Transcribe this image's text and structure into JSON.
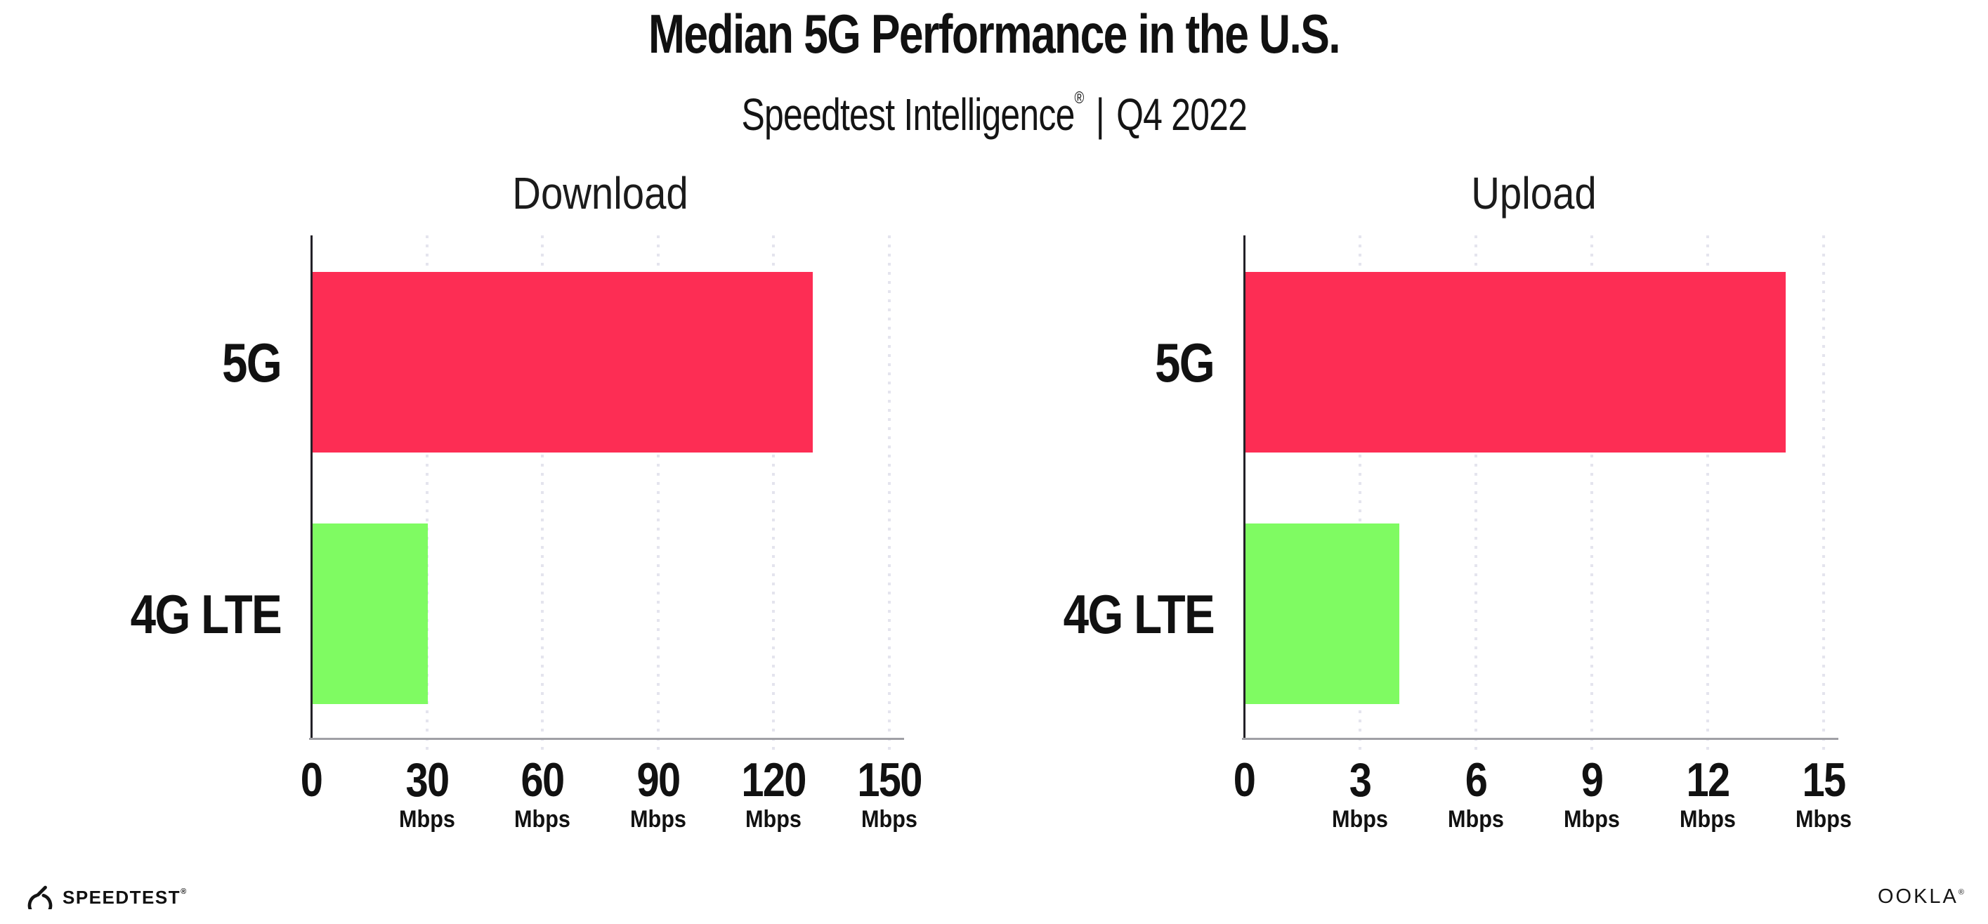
{
  "title": "Median 5G Performance in the U.S.",
  "subtitle": {
    "product": "Speedtest Intelligence",
    "trademark": "®",
    "separator": "|",
    "period": "Q4 2022"
  },
  "chart_data": [
    {
      "type": "bar",
      "orientation": "horizontal",
      "title": "Download",
      "categories": [
        "5G",
        "4G LTE"
      ],
      "values": [
        130,
        30
      ],
      "unit": "Mbps",
      "xlim": [
        0,
        150
      ],
      "xticks": [
        0,
        30,
        60,
        90,
        120,
        150
      ],
      "grid": "dotted-vertical",
      "legend": "none",
      "bar_colors": [
        "#FD2D54",
        "#7FFB62"
      ]
    },
    {
      "type": "bar",
      "orientation": "horizontal",
      "title": "Upload",
      "categories": [
        "5G",
        "4G LTE"
      ],
      "values": [
        14,
        4
      ],
      "unit": "Mbps",
      "xlim": [
        0,
        15
      ],
      "xticks": [
        0,
        3,
        6,
        9,
        12,
        15
      ],
      "grid": "dotted-vertical",
      "legend": "none",
      "bar_colors": [
        "#FD2D54",
        "#7FFB62"
      ]
    }
  ],
  "footer": {
    "speedtest_label": "SPEEDTEST",
    "speedtest_trademark": "®",
    "ookla_label": "OOKLA",
    "ookla_trademark": "®"
  },
  "colors": {
    "bar_5g": "#FD2D54",
    "bar_4g_lte": "#7FFB62",
    "grid_dot": "#E4E4EE",
    "y_axis": "#232127",
    "x_axis": "#A0A0A5",
    "text": "#111111",
    "background": "#FFFFFF"
  }
}
